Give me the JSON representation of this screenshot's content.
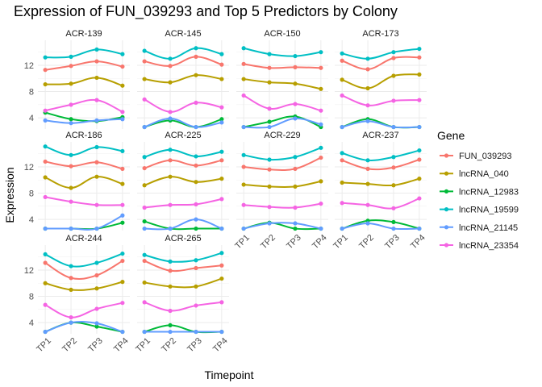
{
  "chart_data": {
    "type": "line",
    "title": "Expression of FUN_039293 and Top 5 Predictors by Colony",
    "xlabel": "Timepoint",
    "ylabel": "Expression",
    "x": [
      "TP1",
      "TP2",
      "TP3",
      "TP4"
    ],
    "ylim": [
      2.3,
      15.8
    ],
    "yticks": [
      4,
      8,
      12
    ],
    "grid": true,
    "legend_title": "Gene",
    "legend_position": "right",
    "gene_colors": {
      "FUN_039293": "#F8766D",
      "lncRNA_040": "#B79F00",
      "lncRNA_12983": "#00BA38",
      "lncRNA_19599": "#00BFC4",
      "lncRNA_21145": "#619CFF",
      "lncRNA_23354": "#F564E3"
    },
    "genes": [
      "FUN_039293",
      "lncRNA_040",
      "lncRNA_12983",
      "lncRNA_19599",
      "lncRNA_21145",
      "lncRNA_23354"
    ],
    "panels": [
      {
        "colony": "ACR-139",
        "series": {
          "FUN_039293": [
            11.3,
            11.9,
            12.6,
            11.8
          ],
          "lncRNA_040": [
            9.1,
            9.2,
            10.1,
            8.9
          ],
          "lncRNA_12983": [
            4.8,
            3.8,
            3.5,
            4.1
          ],
          "lncRNA_19599": [
            13.2,
            13.3,
            14.4,
            13.7
          ],
          "lncRNA_21145": [
            3.6,
            3.2,
            3.6,
            3.8
          ],
          "lncRNA_23354": [
            5.1,
            6.0,
            6.7,
            4.9
          ]
        }
      },
      {
        "colony": "ACR-145",
        "series": {
          "FUN_039293": [
            12.6,
            11.9,
            13.3,
            12.1
          ],
          "lncRNA_040": [
            9.9,
            9.4,
            10.5,
            9.9
          ],
          "lncRNA_12983": [
            2.6,
            3.6,
            2.6,
            3.8
          ],
          "lncRNA_19599": [
            14.2,
            13.0,
            14.6,
            13.7
          ],
          "lncRNA_21145": [
            2.6,
            3.9,
            2.6,
            3.3
          ],
          "lncRNA_23354": [
            6.8,
            4.9,
            6.3,
            5.6
          ]
        }
      },
      {
        "colony": "ACR-150",
        "series": {
          "FUN_039293": [
            12.2,
            11.6,
            11.7,
            11.6
          ],
          "lncRNA_040": [
            9.9,
            9.4,
            9.2,
            8.4
          ],
          "lncRNA_12983": [
            2.6,
            3.4,
            4.2,
            2.6
          ],
          "lncRNA_19599": [
            14.6,
            13.7,
            13.4,
            14.0
          ],
          "lncRNA_21145": [
            2.6,
            2.6,
            3.9,
            3.0
          ],
          "lncRNA_23354": [
            7.4,
            5.4,
            6.1,
            5.1
          ]
        }
      },
      {
        "colony": "ACR-173",
        "series": {
          "FUN_039293": [
            12.7,
            11.4,
            13.1,
            13.2
          ],
          "lncRNA_040": [
            9.8,
            8.5,
            10.4,
            10.6
          ],
          "lncRNA_12983": [
            2.6,
            3.8,
            2.6,
            2.6
          ],
          "lncRNA_19599": [
            13.8,
            13.0,
            14.0,
            14.5
          ],
          "lncRNA_21145": [
            2.6,
            3.5,
            2.6,
            2.6
          ],
          "lncRNA_23354": [
            7.4,
            5.9,
            6.6,
            6.7
          ]
        }
      },
      {
        "colony": "ACR-186",
        "series": {
          "FUN_039293": [
            12.8,
            12.1,
            12.7,
            11.7
          ],
          "lncRNA_040": [
            10.4,
            8.8,
            10.5,
            9.4
          ],
          "lncRNA_12983": [
            2.6,
            2.6,
            2.6,
            3.5
          ],
          "lncRNA_19599": [
            15.1,
            13.8,
            15.0,
            14.4
          ],
          "lncRNA_21145": [
            2.6,
            2.6,
            2.6,
            4.6
          ],
          "lncRNA_23354": [
            7.4,
            6.7,
            6.2,
            6.2
          ]
        }
      },
      {
        "colony": "ACR-225",
        "series": {
          "FUN_039293": [
            11.8,
            13.0,
            12.2,
            13.0
          ],
          "lncRNA_040": [
            9.2,
            10.5,
            9.7,
            10.2
          ],
          "lncRNA_12983": [
            3.7,
            2.6,
            2.6,
            2.6
          ],
          "lncRNA_19599": [
            13.5,
            14.6,
            13.6,
            14.3
          ],
          "lncRNA_21145": [
            2.6,
            2.6,
            4.0,
            2.6
          ],
          "lncRNA_23354": [
            5.8,
            6.2,
            6.3,
            7.1
          ]
        }
      },
      {
        "colony": "ACR-229",
        "series": {
          "FUN_039293": [
            12.0,
            11.6,
            11.7,
            13.4
          ],
          "lncRNA_040": [
            9.3,
            9.0,
            9.0,
            9.8
          ],
          "lncRNA_12983": [
            2.6,
            3.5,
            2.6,
            2.6
          ],
          "lncRNA_19599": [
            13.8,
            13.1,
            13.5,
            14.9
          ],
          "lncRNA_21145": [
            2.6,
            3.4,
            3.4,
            2.6
          ],
          "lncRNA_23354": [
            6.2,
            5.9,
            5.8,
            6.4
          ]
        }
      },
      {
        "colony": "ACR-237",
        "series": {
          "FUN_039293": [
            13.0,
            11.7,
            11.9,
            13.1
          ],
          "lncRNA_040": [
            9.6,
            9.4,
            9.2,
            10.2
          ],
          "lncRNA_12983": [
            2.6,
            3.8,
            3.6,
            2.6
          ],
          "lncRNA_19599": [
            14.1,
            13.0,
            13.5,
            14.5
          ],
          "lncRNA_21145": [
            2.6,
            3.4,
            2.6,
            2.6
          ],
          "lncRNA_23354": [
            6.5,
            6.2,
            5.7,
            7.2
          ]
        }
      },
      {
        "colony": "ACR-244",
        "series": {
          "FUN_039293": [
            13.1,
            10.8,
            11.2,
            13.4
          ],
          "lncRNA_040": [
            10.0,
            9.0,
            9.2,
            10.2
          ],
          "lncRNA_12983": [
            2.6,
            4.0,
            3.4,
            2.6
          ],
          "lncRNA_19599": [
            14.4,
            12.6,
            13.1,
            14.5
          ],
          "lncRNA_21145": [
            2.6,
            4.0,
            3.9,
            2.6
          ],
          "lncRNA_23354": [
            6.7,
            4.8,
            6.1,
            7.0
          ]
        }
      },
      {
        "colony": "ACR-265",
        "series": {
          "FUN_039293": [
            13.4,
            11.9,
            12.3,
            12.7
          ],
          "lncRNA_040": [
            10.1,
            9.5,
            9.5,
            10.7
          ],
          "lncRNA_12983": [
            2.6,
            3.6,
            2.6,
            2.6
          ],
          "lncRNA_19599": [
            14.3,
            13.3,
            13.5,
            14.6
          ],
          "lncRNA_21145": [
            2.6,
            2.6,
            2.6,
            2.6
          ],
          "lncRNA_23354": [
            7.1,
            5.8,
            6.6,
            7.1
          ]
        }
      }
    ]
  }
}
